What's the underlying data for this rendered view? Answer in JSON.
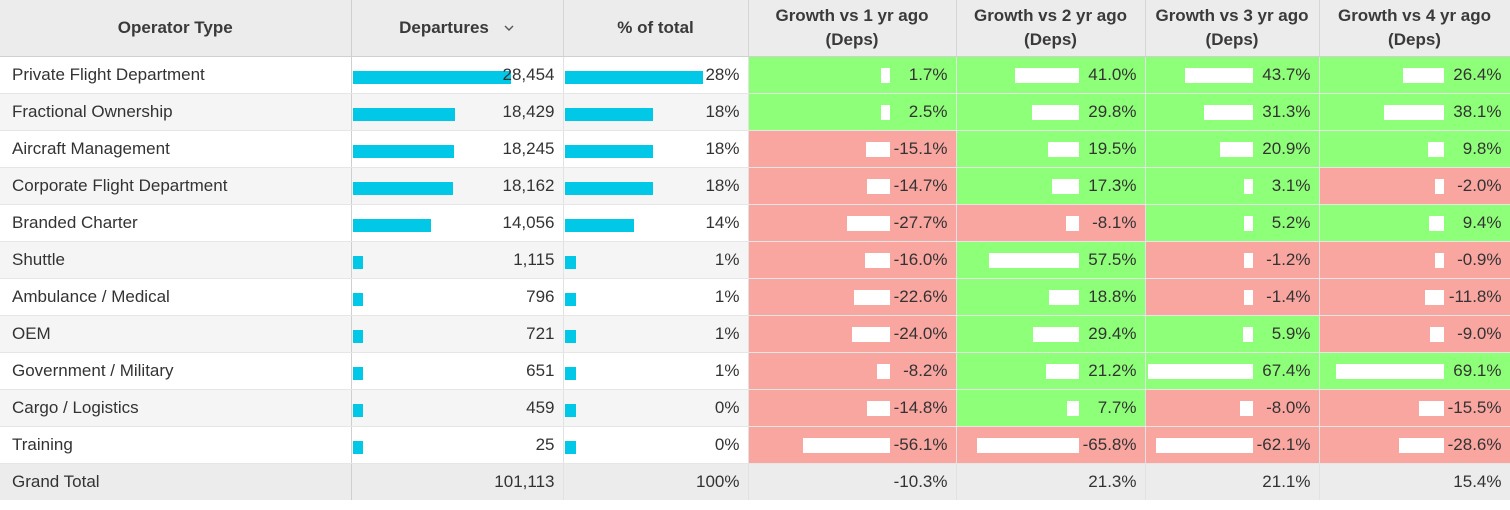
{
  "header": {
    "operator_type": "Operator Type",
    "departures": "Departures",
    "pct_total": "% of total",
    "growth1": "Growth vs 1 yr ago (Deps)",
    "growth2": "Growth vs 2 yr ago (Deps)",
    "growth3": "Growth vs 3 yr ago (Deps)",
    "growth4": "Growth vs 4 yr ago (Deps)"
  },
  "colors": {
    "bar": "#00c8e6",
    "positive": "#8eff78",
    "negative": "#f9a6a1",
    "header_bg": "#ececec"
  },
  "rows": [
    {
      "name": "Private Flight Department",
      "departures": "28,454",
      "dep_value": 28454,
      "pct": "28%",
      "pct_value": 28,
      "g": [
        "1.7%",
        "41.0%",
        "43.7%",
        "26.4%"
      ],
      "gv": [
        1.7,
        41.0,
        43.7,
        26.4
      ]
    },
    {
      "name": "Fractional Ownership",
      "departures": "18,429",
      "dep_value": 18429,
      "pct": "18%",
      "pct_value": 18,
      "g": [
        "2.5%",
        "29.8%",
        "31.3%",
        "38.1%"
      ],
      "gv": [
        2.5,
        29.8,
        31.3,
        38.1
      ]
    },
    {
      "name": "Aircraft Management",
      "departures": "18,245",
      "dep_value": 18245,
      "pct": "18%",
      "pct_value": 18,
      "g": [
        "-15.1%",
        "19.5%",
        "20.9%",
        "9.8%"
      ],
      "gv": [
        -15.1,
        19.5,
        20.9,
        9.8
      ]
    },
    {
      "name": "Corporate Flight Department",
      "departures": "18,162",
      "dep_value": 18162,
      "pct": "18%",
      "pct_value": 18,
      "g": [
        "-14.7%",
        "17.3%",
        "3.1%",
        "-2.0%"
      ],
      "gv": [
        -14.7,
        17.3,
        3.1,
        -2.0
      ]
    },
    {
      "name": "Branded Charter",
      "departures": "14,056",
      "dep_value": 14056,
      "pct": "14%",
      "pct_value": 14,
      "g": [
        "-27.7%",
        "-8.1%",
        "5.2%",
        "9.4%"
      ],
      "gv": [
        -27.7,
        -8.1,
        5.2,
        9.4
      ]
    },
    {
      "name": "Shuttle",
      "departures": "1,115",
      "dep_value": 1115,
      "pct": "1%",
      "pct_value": 1,
      "g": [
        "-16.0%",
        "57.5%",
        "-1.2%",
        "-0.9%"
      ],
      "gv": [
        -16.0,
        57.5,
        -1.2,
        -0.9
      ]
    },
    {
      "name": "Ambulance / Medical",
      "departures": "796",
      "dep_value": 796,
      "pct": "1%",
      "pct_value": 1,
      "g": [
        "-22.6%",
        "18.8%",
        "-1.4%",
        "-11.8%"
      ],
      "gv": [
        -22.6,
        18.8,
        -1.4,
        -11.8
      ]
    },
    {
      "name": "OEM",
      "departures": "721",
      "dep_value": 721,
      "pct": "1%",
      "pct_value": 1,
      "g": [
        "-24.0%",
        "29.4%",
        "5.9%",
        "-9.0%"
      ],
      "gv": [
        -24.0,
        29.4,
        5.9,
        -9.0
      ]
    },
    {
      "name": "Government / Military",
      "departures": "651",
      "dep_value": 651,
      "pct": "1%",
      "pct_value": 1,
      "g": [
        "-8.2%",
        "21.2%",
        "67.4%",
        "69.1%"
      ],
      "gv": [
        -8.2,
        21.2,
        67.4,
        69.1
      ]
    },
    {
      "name": "Cargo / Logistics",
      "departures": "459",
      "dep_value": 459,
      "pct": "0%",
      "pct_value": 0,
      "g": [
        "-14.8%",
        "7.7%",
        "-8.0%",
        "-15.5%"
      ],
      "gv": [
        -14.8,
        7.7,
        -8.0,
        -15.5
      ]
    },
    {
      "name": "Training",
      "departures": "25",
      "dep_value": 25,
      "pct": "0%",
      "pct_value": 0,
      "g": [
        "-56.1%",
        "-65.8%",
        "-62.1%",
        "-28.6%"
      ],
      "gv": [
        -56.1,
        -65.8,
        -62.1,
        -28.6
      ]
    }
  ],
  "total": {
    "name": "Grand Total",
    "departures": "101,113",
    "pct": "100%",
    "g": [
      "-10.3%",
      "21.3%",
      "21.1%",
      "15.4%"
    ]
  }
}
